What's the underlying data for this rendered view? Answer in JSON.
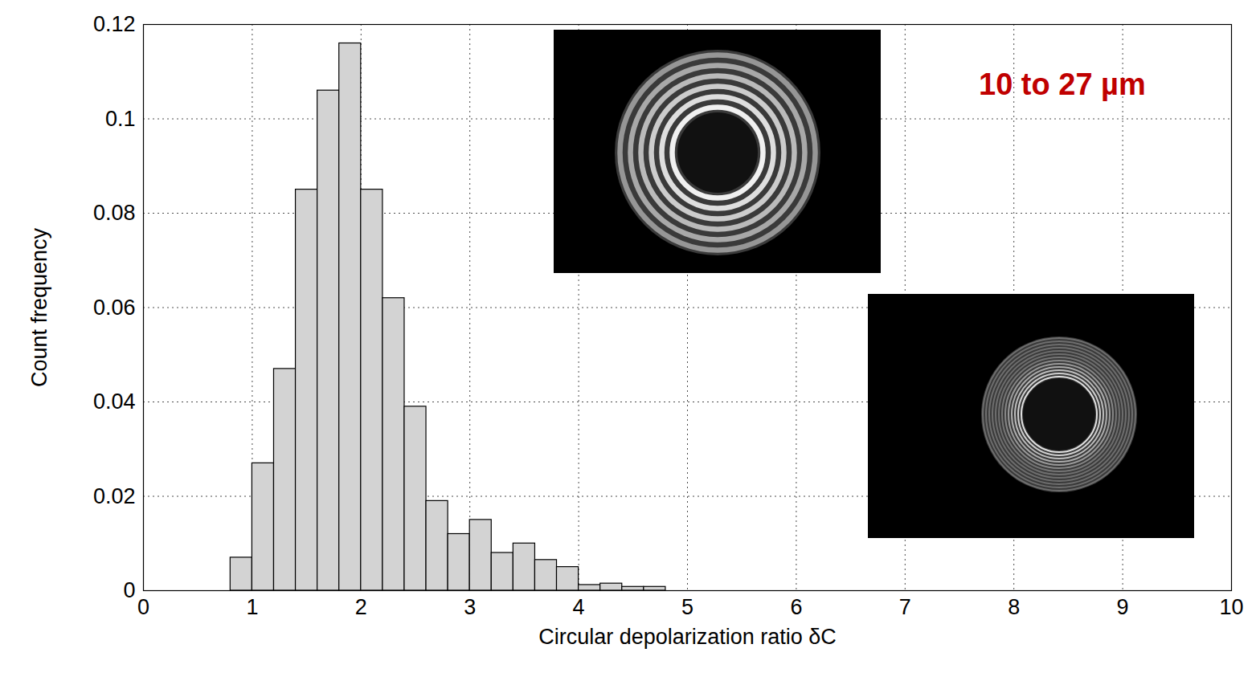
{
  "chart_data": {
    "type": "histogram",
    "xlabel": "Circular depolarization ratio δC",
    "ylabel": "Count frequency",
    "bins": [
      0.8,
      1.0,
      1.2,
      1.4,
      1.6,
      1.8,
      2.0,
      2.2,
      2.4,
      2.6,
      2.8,
      3.0,
      3.2,
      3.4,
      3.6,
      3.8,
      4.0,
      4.2,
      4.4,
      4.6,
      4.8
    ],
    "values": [
      0.007,
      0.027,
      0.047,
      0.085,
      0.106,
      0.116,
      0.085,
      0.062,
      0.039,
      0.019,
      0.012,
      0.015,
      0.008,
      0.01,
      0.0065,
      0.005,
      0.0012,
      0.0015,
      0.0008,
      0.0008
    ],
    "color": "#d3d3d3",
    "xlim": [
      0,
      10
    ],
    "xticks": [
      0,
      1,
      2,
      3,
      4,
      5,
      6,
      7,
      8,
      9,
      10
    ],
    "ylim": [
      0,
      0.12
    ],
    "yticks": [
      0,
      0.02,
      0.04,
      0.06,
      0.08,
      0.1,
      0.12
    ],
    "grid": true,
    "annotations": [
      "10 to 27 µm"
    ]
  }
}
